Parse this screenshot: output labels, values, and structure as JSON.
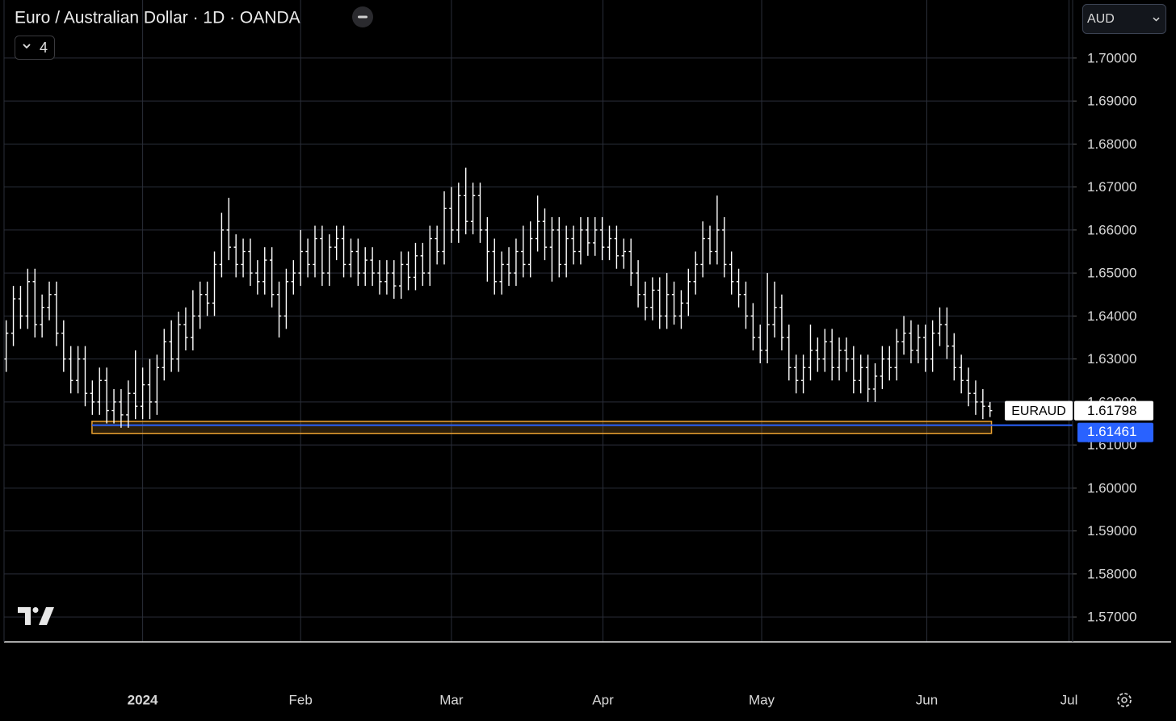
{
  "chart_data": {
    "type": "ohlc",
    "title": "Euro / Australian Dollar · 1D · OANDA",
    "symbol": "EURAUD",
    "currency": "AUD",
    "indicators_count": 4,
    "color": "#ffffff",
    "grid": true,
    "grid_color": "#2a2e39",
    "opens": [
      1.63,
      1.636,
      1.644,
      1.64,
      1.648,
      1.638,
      1.642,
      1.645,
      1.636,
      1.63,
      1.625,
      1.63,
      1.622,
      1.62,
      1.625,
      1.618,
      1.62,
      1.617,
      1.622,
      1.619,
      1.624,
      1.62,
      1.628,
      1.634,
      1.63,
      1.638,
      1.635,
      1.64,
      1.645,
      1.643,
      1.652,
      1.66,
      1.656,
      1.652,
      1.655,
      1.65,
      1.648,
      1.653,
      1.645,
      1.64,
      1.648,
      1.65,
      1.655,
      1.652,
      1.658,
      1.65,
      1.656,
      1.658,
      1.652,
      1.655,
      1.65,
      1.653,
      1.65,
      1.648,
      1.65,
      1.647,
      1.652,
      1.649,
      1.654,
      1.65,
      1.658,
      1.655,
      1.665,
      1.66,
      1.668,
      1.662,
      1.668,
      1.66,
      1.655,
      1.648,
      1.652,
      1.65,
      1.655,
      1.652,
      1.658,
      1.662,
      1.656,
      1.66,
      1.652,
      1.658,
      1.655,
      1.66,
      1.657,
      1.66,
      1.656,
      1.658,
      1.654,
      1.655,
      1.65,
      1.645,
      1.642,
      1.646,
      1.64,
      1.645,
      1.64,
      1.643,
      1.648,
      1.652,
      1.658,
      1.655,
      1.66,
      1.652,
      1.648,
      1.645,
      1.64,
      1.635,
      1.632,
      1.638,
      1.642,
      1.635,
      1.628,
      1.625,
      1.628,
      1.632,
      1.63,
      1.634,
      1.628,
      1.632,
      1.63,
      1.625,
      1.628,
      1.623,
      1.626,
      1.63,
      1.628,
      1.634,
      1.636,
      1.632,
      1.635,
      1.63,
      1.636,
      1.638,
      1.633,
      1.628,
      1.625,
      1.622,
      1.62,
      1.619
    ],
    "highs": [
      1.639,
      1.647,
      1.647,
      1.651,
      1.651,
      1.645,
      1.648,
      1.648,
      1.639,
      1.633,
      1.633,
      1.633,
      1.625,
      1.628,
      1.628,
      1.623,
      1.623,
      1.625,
      1.632,
      1.628,
      1.63,
      1.631,
      1.637,
      1.639,
      1.641,
      1.642,
      1.646,
      1.648,
      1.648,
      1.655,
      1.664,
      1.6675,
      1.659,
      1.658,
      1.658,
      1.653,
      1.656,
      1.656,
      1.648,
      1.651,
      1.653,
      1.66,
      1.658,
      1.661,
      1.661,
      1.659,
      1.661,
      1.661,
      1.658,
      1.658,
      1.656,
      1.656,
      1.653,
      1.653,
      1.653,
      1.655,
      1.655,
      1.657,
      1.657,
      1.661,
      1.661,
      1.669,
      1.67,
      1.671,
      1.6745,
      1.671,
      1.671,
      1.663,
      1.658,
      1.655,
      1.656,
      1.658,
      1.661,
      1.662,
      1.668,
      1.665,
      1.663,
      1.663,
      1.661,
      1.661,
      1.663,
      1.663,
      1.663,
      1.663,
      1.661,
      1.661,
      1.658,
      1.658,
      1.653,
      1.648,
      1.649,
      1.649,
      1.65,
      1.648,
      1.646,
      1.651,
      1.655,
      1.662,
      1.661,
      1.668,
      1.663,
      1.655,
      1.651,
      1.648,
      1.643,
      1.638,
      1.65,
      1.648,
      1.645,
      1.638,
      1.631,
      1.631,
      1.638,
      1.635,
      1.637,
      1.637,
      1.635,
      1.635,
      1.633,
      1.631,
      1.631,
      1.629,
      1.633,
      1.633,
      1.637,
      1.64,
      1.639,
      1.638,
      1.638,
      1.639,
      1.642,
      1.642,
      1.636,
      1.631,
      1.628,
      1.625,
      1.623,
      1.62
    ],
    "lows": [
      1.627,
      1.633,
      1.637,
      1.637,
      1.635,
      1.635,
      1.639,
      1.633,
      1.627,
      1.622,
      1.622,
      1.619,
      1.617,
      1.617,
      1.615,
      1.615,
      1.614,
      1.614,
      1.616,
      1.616,
      1.616,
      1.617,
      1.625,
      1.627,
      1.627,
      1.632,
      1.632,
      1.637,
      1.64,
      1.64,
      1.649,
      1.653,
      1.649,
      1.649,
      1.647,
      1.645,
      1.645,
      1.642,
      1.635,
      1.637,
      1.645,
      1.647,
      1.649,
      1.649,
      1.647,
      1.647,
      1.653,
      1.649,
      1.649,
      1.647,
      1.647,
      1.647,
      1.645,
      1.645,
      1.644,
      1.644,
      1.646,
      1.646,
      1.647,
      1.647,
      1.652,
      1.652,
      1.657,
      1.657,
      1.659,
      1.659,
      1.657,
      1.648,
      1.645,
      1.645,
      1.647,
      1.647,
      1.649,
      1.649,
      1.655,
      1.653,
      1.648,
      1.649,
      1.649,
      1.652,
      1.652,
      1.654,
      1.654,
      1.653,
      1.653,
      1.651,
      1.651,
      1.647,
      1.642,
      1.639,
      1.639,
      1.637,
      1.637,
      1.638,
      1.637,
      1.64,
      1.645,
      1.649,
      1.652,
      1.652,
      1.649,
      1.645,
      1.642,
      1.637,
      1.632,
      1.629,
      1.629,
      1.635,
      1.632,
      1.625,
      1.622,
      1.622,
      1.625,
      1.627,
      1.627,
      1.625,
      1.625,
      1.627,
      1.622,
      1.622,
      1.62,
      1.62,
      1.623,
      1.625,
      1.625,
      1.631,
      1.629,
      1.629,
      1.627,
      1.627,
      1.633,
      1.63,
      1.625,
      1.622,
      1.619,
      1.617,
      1.616,
      1.6165
    ],
    "closes": [
      1.636,
      1.644,
      1.64,
      1.648,
      1.638,
      1.642,
      1.645,
      1.636,
      1.63,
      1.625,
      1.63,
      1.622,
      1.62,
      1.625,
      1.618,
      1.62,
      1.617,
      1.622,
      1.619,
      1.624,
      1.62,
      1.628,
      1.634,
      1.63,
      1.638,
      1.635,
      1.64,
      1.645,
      1.643,
      1.652,
      1.66,
      1.656,
      1.652,
      1.655,
      1.65,
      1.648,
      1.653,
      1.645,
      1.64,
      1.648,
      1.65,
      1.655,
      1.652,
      1.658,
      1.65,
      1.656,
      1.658,
      1.652,
      1.655,
      1.65,
      1.653,
      1.65,
      1.648,
      1.65,
      1.647,
      1.652,
      1.649,
      1.654,
      1.65,
      1.658,
      1.655,
      1.665,
      1.66,
      1.668,
      1.662,
      1.668,
      1.66,
      1.655,
      1.648,
      1.652,
      1.65,
      1.655,
      1.652,
      1.658,
      1.662,
      1.656,
      1.66,
      1.652,
      1.658,
      1.655,
      1.66,
      1.657,
      1.66,
      1.656,
      1.658,
      1.654,
      1.655,
      1.65,
      1.645,
      1.642,
      1.646,
      1.64,
      1.645,
      1.64,
      1.643,
      1.648,
      1.652,
      1.658,
      1.655,
      1.66,
      1.652,
      1.648,
      1.645,
      1.64,
      1.635,
      1.632,
      1.638,
      1.642,
      1.635,
      1.628,
      1.625,
      1.628,
      1.632,
      1.63,
      1.634,
      1.628,
      1.632,
      1.63,
      1.625,
      1.628,
      1.623,
      1.626,
      1.63,
      1.628,
      1.634,
      1.636,
      1.632,
      1.635,
      1.63,
      1.636,
      1.638,
      1.633,
      1.628,
      1.625,
      1.622,
      1.62,
      1.619,
      1.61798
    ],
    "xlim": [
      -0.3,
      148.5
    ],
    "xticks": [
      {
        "value": 19,
        "label": "2024"
      },
      {
        "value": 41,
        "label": "Feb"
      },
      {
        "value": 62,
        "label": "Mar"
      },
      {
        "value": 83.1,
        "label": "Apr"
      },
      {
        "value": 105.2,
        "label": "May"
      },
      {
        "value": 128.2,
        "label": "Jun"
      },
      {
        "value": 148,
        "label": "Jul"
      }
    ],
    "ylim": [
      1.5642,
      1.7135
    ],
    "yticks": [
      {
        "value": 1.57,
        "label": "1.57000"
      },
      {
        "value": 1.58,
        "label": "1.58000"
      },
      {
        "value": 1.59,
        "label": "1.59000"
      },
      {
        "value": 1.6,
        "label": "1.60000"
      },
      {
        "value": 1.61,
        "label": "1.61000"
      },
      {
        "value": 1.62,
        "label": "1.62000"
      },
      {
        "value": 1.63,
        "label": "1.63000"
      },
      {
        "value": 1.64,
        "label": "1.64000"
      },
      {
        "value": 1.65,
        "label": "1.65000"
      },
      {
        "value": 1.66,
        "label": "1.66000"
      },
      {
        "value": 1.67,
        "label": "1.67000"
      },
      {
        "value": 1.68,
        "label": "1.68000"
      },
      {
        "value": 1.69,
        "label": "1.69000"
      },
      {
        "value": 1.7,
        "label": "1.70000"
      }
    ],
    "price_line": {
      "value": 1.61461,
      "color": "#2962ff"
    },
    "zone": {
      "xlim": [
        11.95,
        137.2
      ],
      "ylim": [
        1.6127,
        1.6155
      ],
      "color": "#f0a532"
    }
  }
}
